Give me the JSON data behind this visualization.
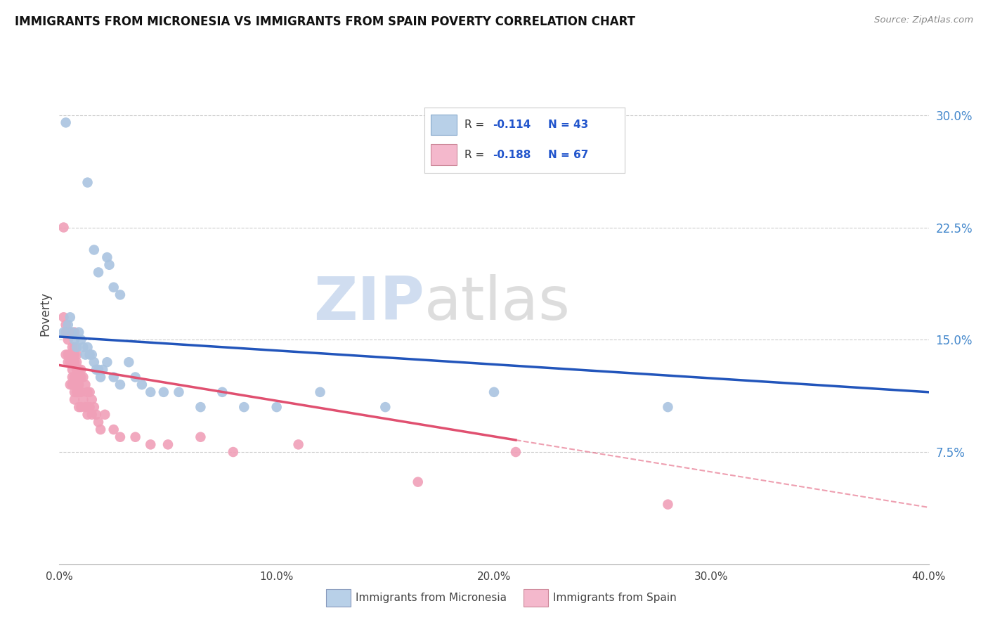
{
  "title": "IMMIGRANTS FROM MICRONESIA VS IMMIGRANTS FROM SPAIN POVERTY CORRELATION CHART",
  "source": "Source: ZipAtlas.com",
  "xlabel_micronesia": "Immigrants from Micronesia",
  "xlabel_spain": "Immigrants from Spain",
  "ylabel": "Poverty",
  "xlim": [
    0.0,
    0.4
  ],
  "ylim": [
    0.0,
    0.335
  ],
  "xticks": [
    0.0,
    0.1,
    0.2,
    0.3,
    0.4
  ],
  "xtick_labels": [
    "0.0%",
    "10.0%",
    "20.0%",
    "30.0%",
    "40.0%"
  ],
  "ytick_right_vals": [
    0.075,
    0.15,
    0.225,
    0.3
  ],
  "ytick_right_labels": [
    "7.5%",
    "15.0%",
    "22.5%",
    "30.0%"
  ],
  "R_micronesia": -0.114,
  "N_micronesia": 43,
  "R_spain": -0.188,
  "N_spain": 67,
  "color_micronesia": "#aac4e0",
  "color_spain": "#f0a0b8",
  "color_micronesia_line": "#2255bb",
  "color_spain_line": "#e05070",
  "color_legend_box_micro": "#b8d0e8",
  "color_legend_box_spain": "#f4b8cc",
  "watermark_zip": "ZIP",
  "watermark_atlas": "atlas",
  "micronesia_x": [
    0.003,
    0.013,
    0.016,
    0.018,
    0.022,
    0.023,
    0.025,
    0.028,
    0.002,
    0.004,
    0.005,
    0.006,
    0.007,
    0.008,
    0.009,
    0.01,
    0.011,
    0.012,
    0.013,
    0.014,
    0.015,
    0.016,
    0.017,
    0.018,
    0.019,
    0.02,
    0.022,
    0.025,
    0.028,
    0.032,
    0.035,
    0.038,
    0.042,
    0.048,
    0.055,
    0.065,
    0.075,
    0.085,
    0.1,
    0.12,
    0.15,
    0.2,
    0.28
  ],
  "micronesia_y": [
    0.295,
    0.255,
    0.21,
    0.195,
    0.205,
    0.2,
    0.185,
    0.18,
    0.155,
    0.16,
    0.165,
    0.155,
    0.15,
    0.145,
    0.155,
    0.15,
    0.145,
    0.14,
    0.145,
    0.14,
    0.14,
    0.135,
    0.13,
    0.13,
    0.125,
    0.13,
    0.135,
    0.125,
    0.12,
    0.135,
    0.125,
    0.12,
    0.115,
    0.115,
    0.115,
    0.105,
    0.115,
    0.105,
    0.105,
    0.115,
    0.105,
    0.115,
    0.105
  ],
  "spain_x": [
    0.002,
    0.002,
    0.003,
    0.003,
    0.003,
    0.004,
    0.004,
    0.004,
    0.004,
    0.005,
    0.005,
    0.005,
    0.005,
    0.006,
    0.006,
    0.006,
    0.006,
    0.006,
    0.007,
    0.007,
    0.007,
    0.007,
    0.007,
    0.007,
    0.007,
    0.007,
    0.008,
    0.008,
    0.008,
    0.008,
    0.008,
    0.009,
    0.009,
    0.009,
    0.009,
    0.009,
    0.01,
    0.01,
    0.01,
    0.01,
    0.011,
    0.011,
    0.012,
    0.012,
    0.013,
    0.013,
    0.013,
    0.014,
    0.014,
    0.015,
    0.015,
    0.016,
    0.017,
    0.018,
    0.019,
    0.021,
    0.025,
    0.028,
    0.035,
    0.042,
    0.05,
    0.065,
    0.08,
    0.11,
    0.165,
    0.21,
    0.28
  ],
  "spain_y": [
    0.225,
    0.165,
    0.16,
    0.155,
    0.14,
    0.155,
    0.15,
    0.14,
    0.135,
    0.155,
    0.14,
    0.135,
    0.12,
    0.145,
    0.135,
    0.13,
    0.125,
    0.12,
    0.155,
    0.145,
    0.14,
    0.135,
    0.125,
    0.12,
    0.115,
    0.11,
    0.14,
    0.135,
    0.13,
    0.12,
    0.115,
    0.13,
    0.125,
    0.12,
    0.115,
    0.105,
    0.13,
    0.125,
    0.115,
    0.105,
    0.125,
    0.11,
    0.12,
    0.105,
    0.115,
    0.105,
    0.1,
    0.115,
    0.105,
    0.11,
    0.1,
    0.105,
    0.1,
    0.095,
    0.09,
    0.1,
    0.09,
    0.085,
    0.085,
    0.08,
    0.08,
    0.085,
    0.075,
    0.08,
    0.055,
    0.075,
    0.04
  ],
  "trend_micro_x0": 0.0,
  "trend_micro_y0": 0.152,
  "trend_micro_x1": 0.4,
  "trend_micro_y1": 0.115,
  "trend_spain_solid_x0": 0.0,
  "trend_spain_solid_y0": 0.133,
  "trend_spain_solid_x1": 0.21,
  "trend_spain_solid_y1": 0.083,
  "trend_spain_dash_x0": 0.21,
  "trend_spain_dash_y0": 0.083,
  "trend_spain_dash_x1": 0.4,
  "trend_spain_dash_y1": 0.038
}
